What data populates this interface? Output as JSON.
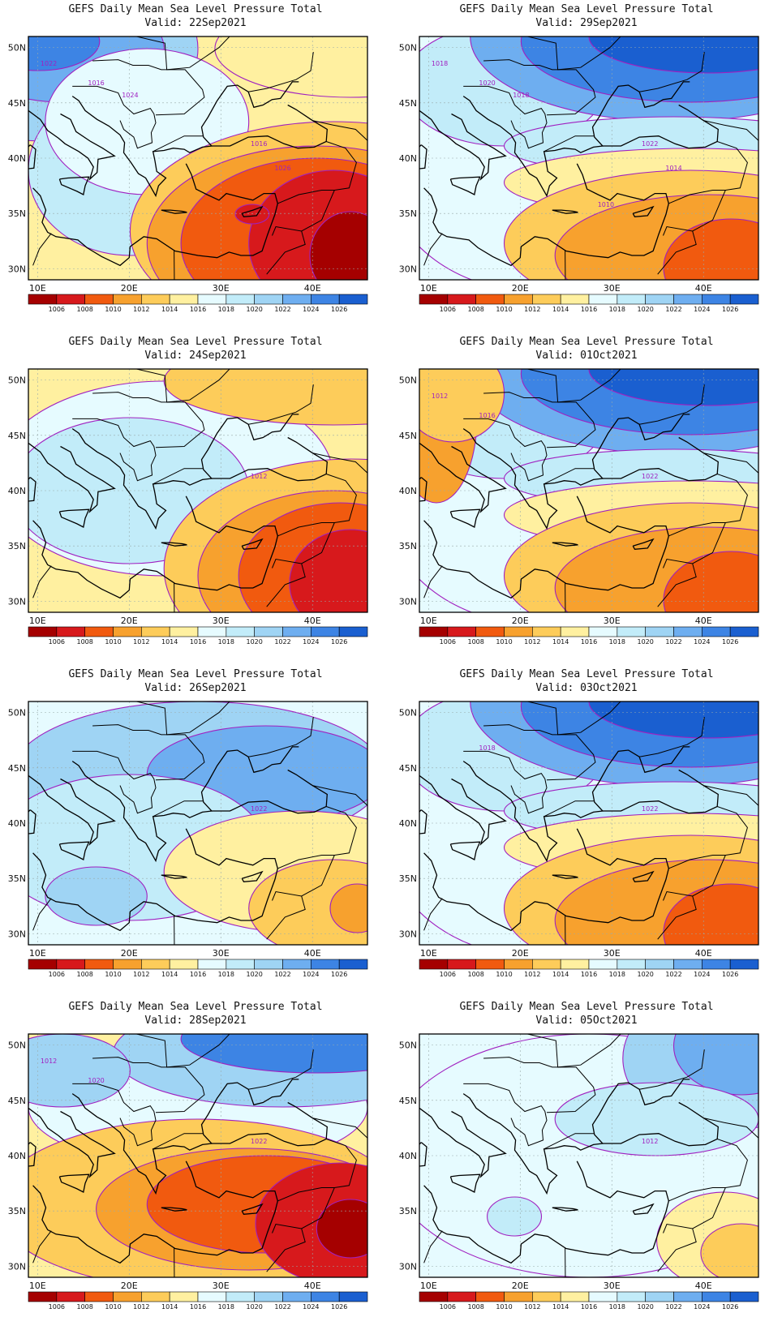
{
  "panels": [
    {
      "title": "GEFS Daily Mean Sea Level Pressure Total",
      "valid": "Valid: 22Sep2021",
      "contour_labels": [
        "1016",
        "1016",
        "1022",
        "1024",
        "1026"
      ],
      "highlow": "low-east"
    },
    {
      "title": "GEFS Daily Mean Sea Level Pressure Total",
      "valid": "Valid: 29Sep2021",
      "contour_labels": [
        "1022",
        "1020",
        "1018",
        "1018",
        "1014",
        "1010"
      ],
      "highlow": "high-northeast"
    },
    {
      "title": "GEFS Daily Mean Sea Level Pressure Total",
      "valid": "Valid: 24Sep2021",
      "contour_labels": [
        "1012"
      ],
      "highlow": "low-southeast"
    },
    {
      "title": "GEFS Daily Mean Sea Level Pressure Total",
      "valid": "Valid: 01Oct2021",
      "contour_labels": [
        "1022",
        "1016",
        "1012"
      ],
      "highlow": "high-northeast"
    },
    {
      "title": "GEFS Daily Mean Sea Level Pressure Total",
      "valid": "Valid: 26Sep2021",
      "contour_labels": [
        "1022"
      ],
      "highlow": "mixed-blue"
    },
    {
      "title": "GEFS Daily Mean Sea Level Pressure Total",
      "valid": "Valid: 03Oct2021",
      "contour_labels": [
        "1022",
        "1018"
      ],
      "highlow": "high-northeast"
    },
    {
      "title": "GEFS Daily Mean Sea Level Pressure Total",
      "valid": "Valid: 28Sep2021",
      "contour_labels": [
        "1022",
        "1020",
        "1012"
      ],
      "highlow": "low-southeast"
    },
    {
      "title": "GEFS Daily Mean Sea Level Pressure Total",
      "valid": "Valid: 05Oct2021",
      "contour_labels": [
        "1012"
      ],
      "highlow": "mixed-blue"
    }
  ],
  "axes": {
    "lon_ticks": [
      "10E",
      "20E",
      "30E",
      "40E"
    ],
    "lat_ticks": [
      "50N",
      "45N",
      "40N",
      "35N",
      "30N"
    ]
  },
  "colorbar": {
    "labels": [
      "1006",
      "1008",
      "1010",
      "1012",
      "1014",
      "1016",
      "1018",
      "1020",
      "1022",
      "1024",
      "1026"
    ],
    "colors": [
      "#a50000",
      "#d7191c",
      "#f15a0f",
      "#f7a12e",
      "#fdcc5a",
      "#fff0a0",
      "#e6fbff",
      "#c2ecf9",
      "#9fd4f4",
      "#6eaef0",
      "#3d84e4",
      "#1a5fd0"
    ]
  },
  "contour_color": "#a020c0"
}
